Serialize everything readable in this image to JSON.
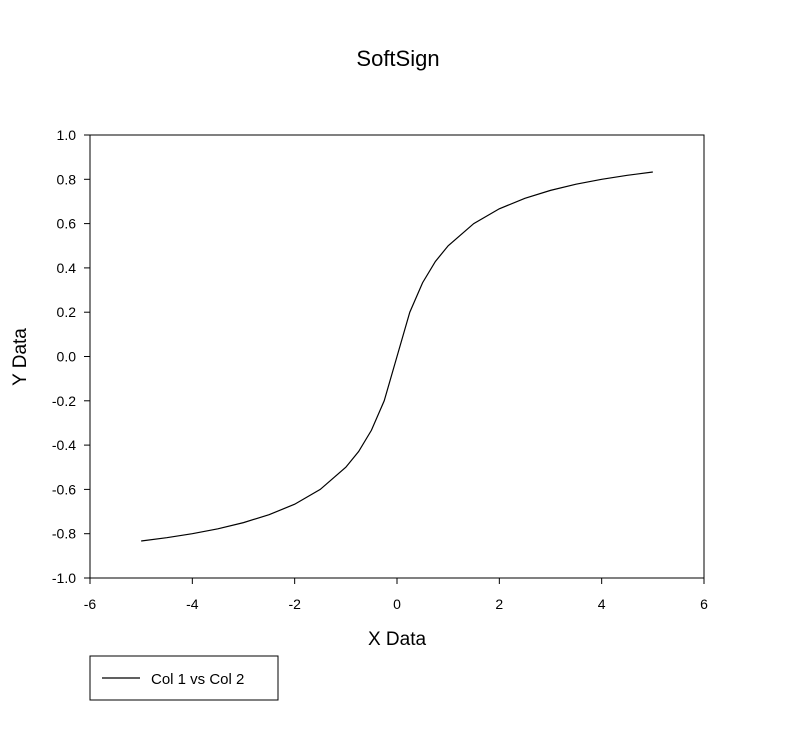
{
  "chart_data": {
    "type": "line",
    "title": "SoftSign",
    "xlabel": "X Data",
    "ylabel": "Y Data",
    "xlim": [
      -6,
      6
    ],
    "ylim": [
      -1.0,
      1.0
    ],
    "x_ticks": [
      "-6",
      "-4",
      "-2",
      "0",
      "2",
      "4",
      "6"
    ],
    "y_ticks": [
      "1.0",
      "0.8",
      "0.6",
      "0.4",
      "0.2",
      "0.0",
      "-0.2",
      "-0.4",
      "-0.6",
      "-0.8",
      "-1.0"
    ],
    "grid": false,
    "legend_position": "bottom-left",
    "series": [
      {
        "name": "Col 1 vs Col 2",
        "color": "#000000",
        "x": [
          -5,
          -4.5,
          -4,
          -3.5,
          -3,
          -2.5,
          -2,
          -1.5,
          -1,
          -0.75,
          -0.5,
          -0.25,
          0,
          0.25,
          0.5,
          0.75,
          1,
          1.5,
          2,
          2.5,
          3,
          3.5,
          4,
          4.5,
          5
        ],
        "y": [
          -0.833,
          -0.818,
          -0.8,
          -0.778,
          -0.75,
          -0.714,
          -0.667,
          -0.6,
          -0.5,
          -0.429,
          -0.333,
          -0.2,
          0,
          0.2,
          0.333,
          0.429,
          0.5,
          0.6,
          0.667,
          0.714,
          0.75,
          0.778,
          0.8,
          0.818,
          0.833
        ]
      }
    ]
  }
}
